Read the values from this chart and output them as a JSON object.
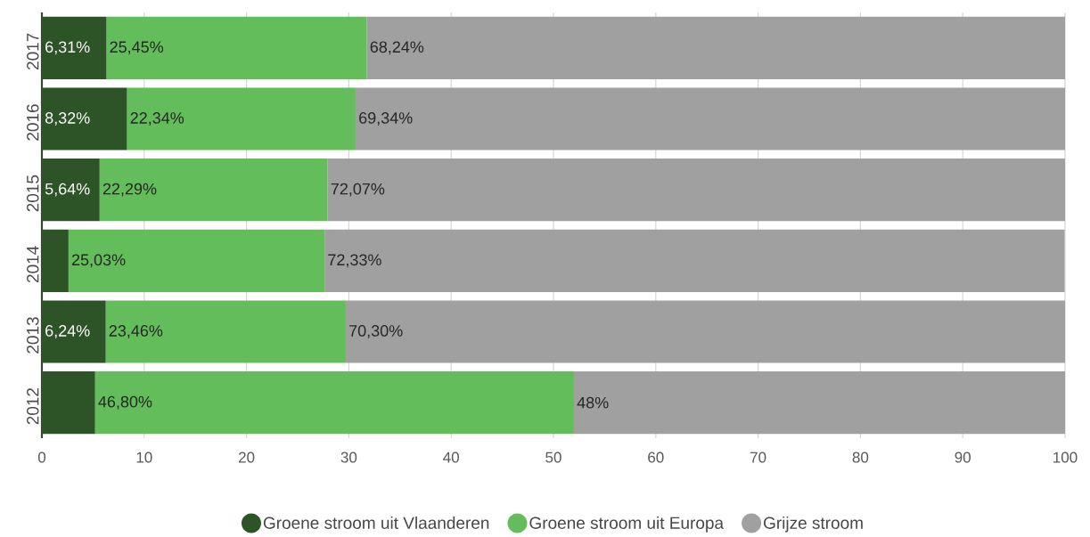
{
  "chart_data": {
    "type": "bar",
    "orientation": "horizontal",
    "stacked": true,
    "categories": [
      "2017",
      "2016",
      "2015",
      "2014",
      "2013",
      "2012"
    ],
    "series": [
      {
        "name": "Groene stroom uit Vlaanderen",
        "color": "#2d5426",
        "values": [
          6.31,
          8.32,
          5.64,
          2.6,
          6.24,
          5.2
        ],
        "value_labels": [
          "6,31%",
          "8,32%",
          "5,64%",
          null,
          "6,24%",
          null
        ]
      },
      {
        "name": "Groene stroom uit Europa",
        "color": "#63bd5a",
        "values": [
          25.45,
          22.34,
          22.29,
          25.03,
          23.46,
          46.8
        ],
        "value_labels": [
          "25,45%",
          "22,34%",
          "22,29%",
          "25,03%",
          "23,46%",
          "46,80%"
        ]
      },
      {
        "name": "Grijze stroom",
        "color": "#a0a0a0",
        "values": [
          68.24,
          69.34,
          72.07,
          72.33,
          70.3,
          48
        ],
        "value_labels": [
          "68,24%",
          "69,34%",
          "72,07%",
          "72,33%",
          "70,30%",
          "48%"
        ]
      }
    ],
    "xlim": [
      0,
      100
    ],
    "xticks": [
      0,
      10,
      20,
      30,
      40,
      50,
      60,
      70,
      80,
      90,
      100
    ],
    "grid": "x",
    "legend": "bottom"
  }
}
